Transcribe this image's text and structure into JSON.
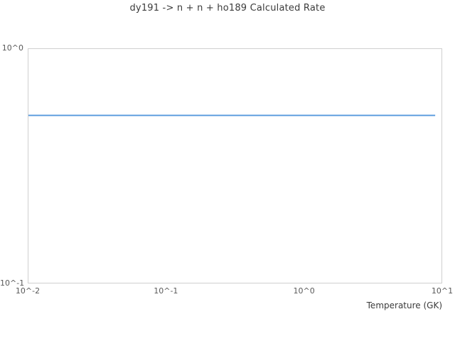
{
  "chart": {
    "title": "dy191 -> n + n + ho189 Calculated Rate",
    "x_axis": {
      "label": "Temperature (GK)",
      "scale": "log",
      "ticks": [
        {
          "label": "10^-2",
          "value": 0.01
        },
        {
          "label": "10^-1",
          "value": 0.1
        },
        {
          "label": "10^0",
          "value": 1
        },
        {
          "label": "10^1",
          "value": 10
        }
      ]
    },
    "y_axis": {
      "label": "",
      "scale": "log",
      "ticks": [
        {
          "label": "10^0",
          "value": 1
        },
        {
          "label": "10^-1",
          "value": 0.1
        }
      ]
    },
    "colors": {
      "line": "#5599dd",
      "axis_border": "#cfcfcf",
      "title_text": "#3b3b3b",
      "tick_text": "#595959"
    }
  },
  "chart_data": {
    "type": "line",
    "title": "dy191 -> n + n + ho189 Calculated Rate",
    "xlabel": "Temperature (GK)",
    "ylabel": "",
    "x_scale": "log",
    "y_scale": "log",
    "xlim": [
      0.01,
      10
    ],
    "ylim": [
      0.1,
      1
    ],
    "grid": false,
    "legend": false,
    "series": [
      {
        "name": "calculated rate",
        "color": "#5599dd",
        "line_width": 2,
        "x": [
          0.01,
          9.0
        ],
        "y": [
          0.52,
          0.52
        ]
      }
    ]
  }
}
